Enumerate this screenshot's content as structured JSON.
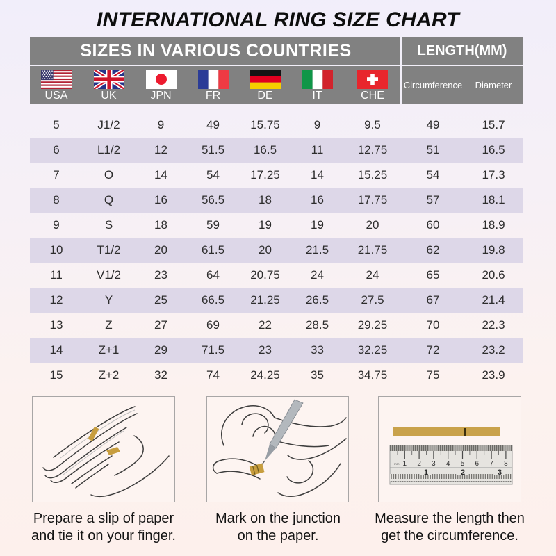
{
  "page": {
    "title": "INTERNATIONAL RING SIZE CHART"
  },
  "table": {
    "header": {
      "left": "SIZES IN VARIOUS COUNTRIES",
      "right": "LENGTH(MM)"
    },
    "countries": [
      {
        "code": "USA"
      },
      {
        "code": "UK"
      },
      {
        "code": "JPN"
      },
      {
        "code": "FR"
      },
      {
        "code": "DE"
      },
      {
        "code": "IT"
      },
      {
        "code": "CHE"
      }
    ],
    "length_columns": [
      "Circumference",
      "Diameter"
    ]
  },
  "instructions": [
    {
      "icon": "hand-with-paper-strip-illustration",
      "lines": [
        "Prepare a slip of paper",
        "and tie it on your finger."
      ]
    },
    {
      "icon": "hand-marking-pen-illustration",
      "lines": [
        "Mark on the junction",
        "on the paper."
      ]
    },
    {
      "icon": "ruler-measurement-illustration",
      "lines": [
        "Measure the length then",
        "get the circumference."
      ]
    }
  ],
  "colors": {
    "header_gray": "#818181",
    "row_band": "#ddd7e8",
    "paper_gold": "#c79d3e",
    "background_top": "#f1eefa",
    "background_bottom": "#fdf0ec"
  },
  "chart_data": {
    "type": "table",
    "title": "INTERNATIONAL RING SIZE CHART",
    "column_groups": [
      {
        "label": "SIZES IN VARIOUS COUNTRIES",
        "span": 7
      },
      {
        "label": "LENGTH(MM)",
        "span": 2
      }
    ],
    "columns": [
      "USA",
      "UK",
      "JPN",
      "FR",
      "DE",
      "IT",
      "CHE",
      "Circumference",
      "Diameter"
    ],
    "rows": [
      [
        "5",
        "J1/2",
        "9",
        "49",
        "15.75",
        "9",
        "9.5",
        "49",
        "15.7"
      ],
      [
        "6",
        "L1/2",
        "12",
        "51.5",
        "16.5",
        "11",
        "12.75",
        "51",
        "16.5"
      ],
      [
        "7",
        "O",
        "14",
        "54",
        "17.25",
        "14",
        "15.25",
        "54",
        "17.3"
      ],
      [
        "8",
        "Q",
        "16",
        "56.5",
        "18",
        "16",
        "17.75",
        "57",
        "18.1"
      ],
      [
        "9",
        "S",
        "18",
        "59",
        "19",
        "19",
        "20",
        "60",
        "18.9"
      ],
      [
        "10",
        "T1/2",
        "20",
        "61.5",
        "20",
        "21.5",
        "21.75",
        "62",
        "19.8"
      ],
      [
        "11",
        "V1/2",
        "23",
        "64",
        "20.75",
        "24",
        "24",
        "65",
        "20.6"
      ],
      [
        "12",
        "Y",
        "25",
        "66.5",
        "21.25",
        "26.5",
        "27.5",
        "67",
        "21.4"
      ],
      [
        "13",
        "Z",
        "27",
        "69",
        "22",
        "28.5",
        "29.25",
        "70",
        "22.3"
      ],
      [
        "14",
        "Z+1",
        "29",
        "71.5",
        "23",
        "33",
        "32.25",
        "72",
        "23.2"
      ],
      [
        "15",
        "Z+2",
        "32",
        "74",
        "24.25",
        "35",
        "34.75",
        "75",
        "23.9"
      ]
    ]
  }
}
